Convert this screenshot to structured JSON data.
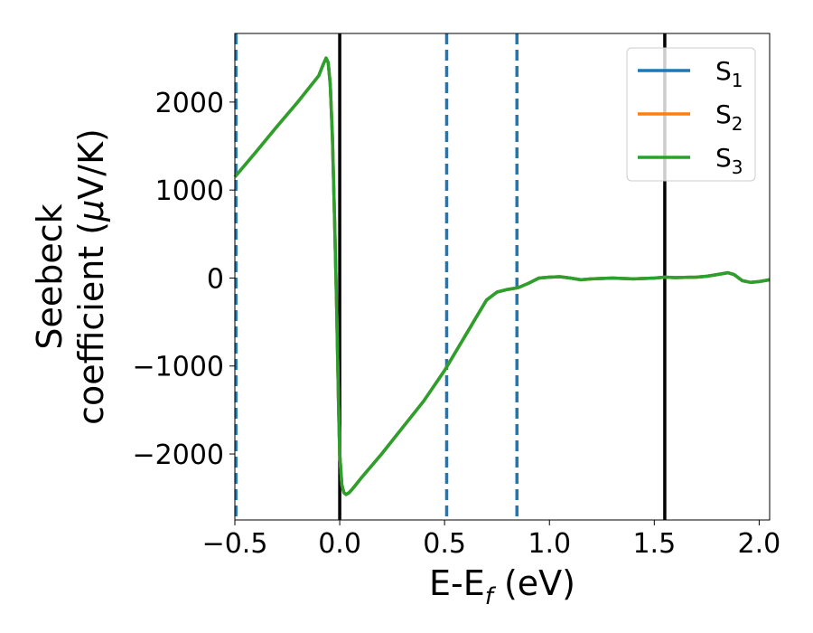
{
  "chart_data": {
    "type": "line",
    "xlabel": {
      "main": "E-E",
      "sub": "f",
      "rest": " (eV)"
    },
    "ylabel": {
      "line1": "Seebeck",
      "line2_main": "coefficient  (",
      "line2_mu": "μ",
      "line2_rest": "V/K)"
    },
    "xlim": [
      -0.5,
      2.05
    ],
    "ylim": [
      -2750,
      2780
    ],
    "xticks": [
      -0.5,
      0.0,
      0.5,
      1.0,
      1.5,
      2.0
    ],
    "xtick_labels": [
      "−0.5",
      "0.0",
      "0.5",
      "1.0",
      "1.5",
      "2.0"
    ],
    "yticks": [
      -2000,
      -1000,
      0,
      1000,
      2000
    ],
    "ytick_labels": [
      "−2000",
      "−1000",
      "0",
      "1000",
      "2000"
    ],
    "grid": false,
    "legend_position": "top-right",
    "vlines_solid": [
      0.0,
      1.55
    ],
    "vlines_dashed": [
      -0.495,
      0.51,
      0.845
    ],
    "series": [
      {
        "name": {
          "main": "S",
          "sub": "1"
        },
        "color": "#1f77b4",
        "x": [
          -0.5,
          -0.4,
          -0.3,
          -0.2,
          -0.1,
          -0.08,
          -0.065,
          -0.055,
          -0.045,
          -0.035,
          -0.025,
          -0.015,
          -0.005,
          0.0,
          0.01,
          0.02,
          0.03,
          0.045,
          0.06,
          0.08,
          0.1,
          0.2,
          0.3,
          0.4,
          0.5,
          0.6,
          0.65,
          0.7,
          0.75,
          0.8,
          0.85,
          0.9,
          0.95,
          1.0,
          1.05,
          1.1,
          1.15,
          1.2,
          1.3,
          1.4,
          1.5,
          1.55,
          1.6,
          1.7,
          1.75,
          1.8,
          1.85,
          1.88,
          1.92,
          1.96,
          2.0,
          2.05
        ],
        "y": [
          1150,
          1430,
          1720,
          2000,
          2300,
          2420,
          2500,
          2450,
          2200,
          1600,
          700,
          -300,
          -1500,
          -2000,
          -2350,
          -2440,
          -2460,
          -2440,
          -2400,
          -2340,
          -2280,
          -2000,
          -1700,
          -1400,
          -1050,
          -650,
          -450,
          -250,
          -160,
          -130,
          -110,
          -60,
          0,
          10,
          15,
          0,
          -20,
          -10,
          0,
          -10,
          0,
          10,
          5,
          10,
          20,
          40,
          60,
          40,
          -30,
          -50,
          -40,
          -20
        ]
      },
      {
        "name": {
          "main": "S",
          "sub": "2"
        },
        "color": "#ff7f0e",
        "x": [
          -0.5,
          -0.4,
          -0.3,
          -0.2,
          -0.1,
          -0.08,
          -0.065,
          -0.055,
          -0.045,
          -0.035,
          -0.025,
          -0.015,
          -0.005,
          0.0,
          0.01,
          0.02,
          0.03,
          0.045,
          0.06,
          0.08,
          0.1,
          0.2,
          0.3,
          0.4,
          0.5,
          0.6,
          0.65,
          0.7,
          0.75,
          0.8,
          0.85,
          0.9,
          0.95,
          1.0,
          1.05,
          1.1,
          1.15,
          1.2,
          1.3,
          1.4,
          1.5,
          1.55,
          1.6,
          1.7,
          1.75,
          1.8,
          1.85,
          1.88,
          1.92,
          1.96,
          2.0,
          2.05
        ],
        "y": [
          1150,
          1430,
          1720,
          2000,
          2300,
          2420,
          2500,
          2450,
          2200,
          1600,
          700,
          -300,
          -1500,
          -2000,
          -2350,
          -2440,
          -2460,
          -2440,
          -2400,
          -2340,
          -2280,
          -2000,
          -1700,
          -1400,
          -1050,
          -650,
          -450,
          -250,
          -160,
          -130,
          -110,
          -60,
          0,
          10,
          15,
          0,
          -20,
          -10,
          0,
          -10,
          0,
          10,
          5,
          10,
          20,
          40,
          60,
          40,
          -30,
          -50,
          -40,
          -20
        ]
      },
      {
        "name": {
          "main": "S",
          "sub": "3"
        },
        "color": "#2ca02c",
        "x": [
          -0.5,
          -0.4,
          -0.3,
          -0.2,
          -0.1,
          -0.08,
          -0.065,
          -0.055,
          -0.045,
          -0.035,
          -0.025,
          -0.015,
          -0.005,
          0.0,
          0.01,
          0.02,
          0.03,
          0.045,
          0.06,
          0.08,
          0.1,
          0.2,
          0.3,
          0.4,
          0.5,
          0.6,
          0.65,
          0.7,
          0.75,
          0.8,
          0.85,
          0.9,
          0.95,
          1.0,
          1.05,
          1.1,
          1.15,
          1.2,
          1.3,
          1.4,
          1.5,
          1.55,
          1.6,
          1.7,
          1.75,
          1.8,
          1.85,
          1.88,
          1.92,
          1.96,
          2.0,
          2.05
        ],
        "y": [
          1150,
          1430,
          1720,
          2000,
          2300,
          2420,
          2500,
          2450,
          2200,
          1600,
          700,
          -300,
          -1500,
          -2000,
          -2350,
          -2440,
          -2460,
          -2440,
          -2400,
          -2340,
          -2280,
          -2000,
          -1700,
          -1400,
          -1050,
          -650,
          -450,
          -250,
          -160,
          -130,
          -110,
          -60,
          0,
          10,
          15,
          0,
          -20,
          -10,
          0,
          -10,
          0,
          10,
          5,
          10,
          20,
          40,
          60,
          40,
          -30,
          -50,
          -40,
          -20
        ]
      }
    ]
  }
}
